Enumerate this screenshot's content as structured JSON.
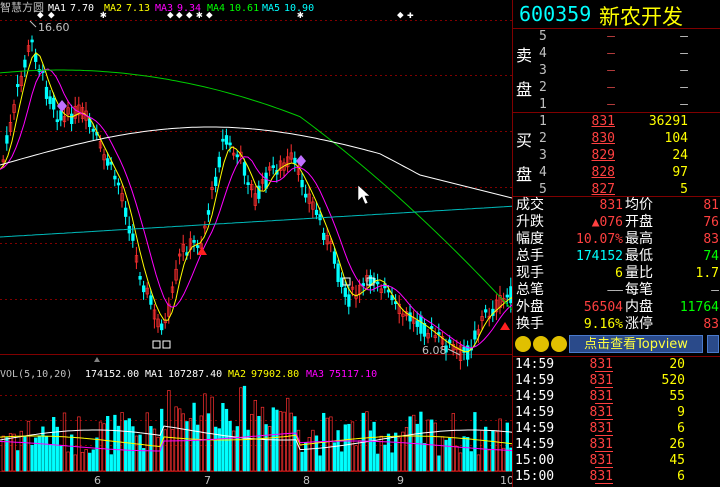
{
  "chart": {
    "ma_legend": [
      {
        "label": "MA1",
        "value": "7.70",
        "color": "#ffffff"
      },
      {
        "label": "MA2",
        "value": "7.13",
        "color": "#ffff00"
      },
      {
        "label": "MA3",
        "value": "9.34",
        "color": "#ff00ff"
      },
      {
        "label": "MA4",
        "value": "10.61",
        "color": "#00ff00"
      },
      {
        "label": "MA5",
        "value": "10.90",
        "color": "#00ffff"
      }
    ],
    "indicator_name": "智慧方圆",
    "high_label": "16.60",
    "low_label": "6.08",
    "vol_legend": {
      "name": "VOL(5,10,20)",
      "value": "174152.00",
      "ma1_label": "MA1",
      "ma1_value": "107287.40",
      "ma2_label": "MA2",
      "ma2_value": "97902.80",
      "ma3_label": "MA3",
      "ma3_value": "75117.10"
    },
    "x_labels": [
      "6",
      "7",
      "8",
      "9",
      "10"
    ],
    "colors": {
      "up": "#ff3030",
      "down": "#00ffff",
      "bg": "#000000",
      "grid": "#800000"
    }
  },
  "quote": {
    "code": "600359",
    "name": "新农开发",
    "sell_side": "卖盘",
    "buy_side": "买盘",
    "asks": [
      {
        "level": "5",
        "price": "—",
        "vol": "—"
      },
      {
        "level": "4",
        "price": "—",
        "vol": "—"
      },
      {
        "level": "3",
        "price": "—",
        "vol": "—"
      },
      {
        "level": "2",
        "price": "—",
        "vol": "—"
      },
      {
        "level": "1",
        "price": "—",
        "vol": "—"
      }
    ],
    "bids": [
      {
        "level": "1",
        "price": "831",
        "vol": "36291"
      },
      {
        "level": "2",
        "price": "830",
        "vol": "104"
      },
      {
        "level": "3",
        "price": "829",
        "vol": "24"
      },
      {
        "level": "4",
        "price": "828",
        "vol": "97"
      },
      {
        "level": "5",
        "price": "827",
        "vol": "5"
      }
    ],
    "stats_left": [
      {
        "label": "成交",
        "value": "831",
        "color": "#ff4040"
      },
      {
        "label": "升跌",
        "value": "▲076",
        "color": "#ff4040"
      },
      {
        "label": "幅度",
        "value": "10.07%",
        "color": "#ff4040"
      },
      {
        "label": "总手",
        "value": "174152",
        "color": "#00ffff"
      },
      {
        "label": "现手",
        "value": "6",
        "color": "#ffff00"
      },
      {
        "label": "总笔",
        "value": "——",
        "color": "#c0c0c0"
      },
      {
        "label": "外盘",
        "value": "56504",
        "color": "#ff4040"
      },
      {
        "label": "换手",
        "value": "9.16%",
        "color": "#ffff00"
      }
    ],
    "stats_right": [
      {
        "label": "均价",
        "value": "81",
        "color": "#ff4040"
      },
      {
        "label": "开盘",
        "value": "76",
        "color": "#ff4040"
      },
      {
        "label": "最高",
        "value": "83",
        "color": "#ff4040"
      },
      {
        "label": "最低",
        "value": "74",
        "color": "#00ff00"
      },
      {
        "label": "量比",
        "value": "1.7",
        "color": "#ffff00"
      },
      {
        "label": "每笔",
        "value": "—",
        "color": "#c0c0c0"
      },
      {
        "label": "内盘",
        "value": "11764",
        "color": "#00ff00"
      },
      {
        "label": "涨停",
        "value": "83",
        "color": "#ff4040"
      }
    ],
    "topview_button": "点击查看Topview",
    "ticks": [
      {
        "time": "14:59",
        "price": "831",
        "vol": "20"
      },
      {
        "time": "14:59",
        "price": "831",
        "vol": "520"
      },
      {
        "time": "14:59",
        "price": "831",
        "vol": "55"
      },
      {
        "time": "14:59",
        "price": "831",
        "vol": "9"
      },
      {
        "time": "14:59",
        "price": "831",
        "vol": "6"
      },
      {
        "time": "14:59",
        "price": "831",
        "vol": "26"
      },
      {
        "time": "15:00",
        "price": "831",
        "vol": "45"
      },
      {
        "time": "15:00",
        "price": "831",
        "vol": "6"
      }
    ]
  }
}
